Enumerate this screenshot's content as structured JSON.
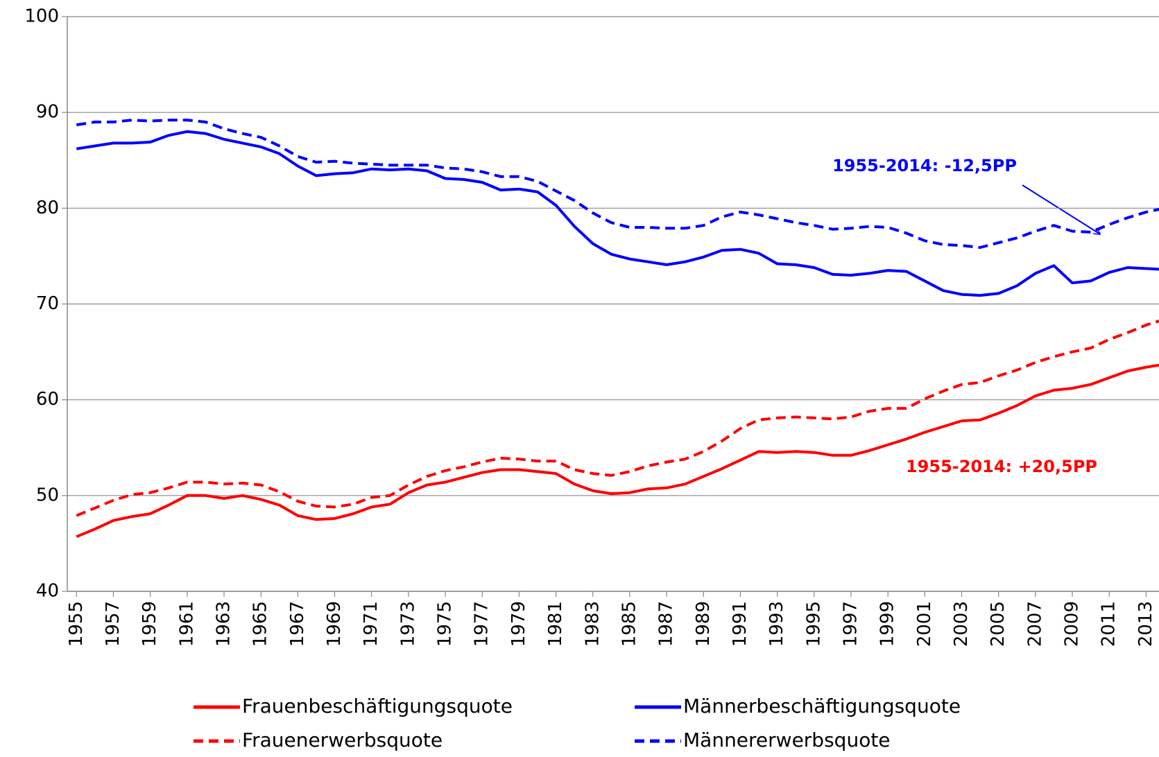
{
  "chart_data": {
    "type": "line",
    "x": [
      1955,
      1956,
      1957,
      1958,
      1959,
      1960,
      1961,
      1962,
      1963,
      1964,
      1965,
      1966,
      1967,
      1968,
      1969,
      1970,
      1971,
      1972,
      1973,
      1974,
      1975,
      1976,
      1977,
      1978,
      1979,
      1980,
      1981,
      1982,
      1983,
      1984,
      1985,
      1986,
      1987,
      1988,
      1989,
      1990,
      1991,
      1992,
      1993,
      1994,
      1995,
      1996,
      1997,
      1998,
      1999,
      2000,
      2001,
      2002,
      2003,
      2004,
      2005,
      2006,
      2007,
      2008,
      2009,
      2010,
      2011,
      2012,
      2013,
      2014
    ],
    "xlim": [
      1954.5,
      2013.7
    ],
    "xticks": [
      1955,
      1957,
      1959,
      1961,
      1963,
      1965,
      1967,
      1969,
      1971,
      1973,
      1975,
      1977,
      1979,
      1981,
      1983,
      1985,
      1987,
      1989,
      1991,
      1993,
      1995,
      1997,
      1999,
      2001,
      2003,
      2005,
      2007,
      2009,
      2011,
      2013
    ],
    "ylim": [
      40,
      100
    ],
    "yticks": [
      40,
      50,
      60,
      70,
      80,
      90,
      100
    ],
    "grid": true,
    "series": [
      {
        "name": "Frauenbeschäftigungsquote",
        "color": "#ff0000",
        "dash": false,
        "values": [
          45.7,
          46.5,
          47.4,
          47.8,
          48.1,
          49.0,
          50.0,
          50.0,
          49.7,
          50.0,
          49.6,
          49.0,
          47.9,
          47.5,
          47.6,
          48.1,
          48.8,
          49.1,
          50.3,
          51.1,
          51.4,
          51.9,
          52.4,
          52.7,
          52.7,
          52.5,
          52.3,
          51.2,
          50.5,
          50.2,
          50.3,
          50.7,
          50.8,
          51.2,
          52.0,
          52.8,
          53.7,
          54.6,
          54.5,
          54.6,
          54.5,
          54.2,
          54.2,
          54.7,
          55.3,
          55.9,
          56.6,
          57.2,
          57.8,
          57.9,
          58.6,
          59.4,
          60.4,
          61.0,
          61.2,
          61.6,
          62.3,
          63.0,
          63.4,
          63.7
        ]
      },
      {
        "name": "Männerbeschäftigungsquote",
        "color": "#0000ff",
        "dash": false,
        "values": [
          86.2,
          86.5,
          86.8,
          86.8,
          86.9,
          87.6,
          88.0,
          87.8,
          87.2,
          86.8,
          86.4,
          85.7,
          84.4,
          83.4,
          83.6,
          83.7,
          84.1,
          84.0,
          84.1,
          83.9,
          83.1,
          83.0,
          82.7,
          81.9,
          82.0,
          81.7,
          80.3,
          78.1,
          76.3,
          75.2,
          74.7,
          74.4,
          74.1,
          74.4,
          74.9,
          75.6,
          75.7,
          75.3,
          74.2,
          74.1,
          73.8,
          73.1,
          73.0,
          73.2,
          73.5,
          73.4,
          72.4,
          71.4,
          71.0,
          70.9,
          71.1,
          71.9,
          73.2,
          74.0,
          72.2,
          72.4,
          73.3,
          73.8,
          73.7,
          73.6
        ]
      },
      {
        "name": "Frauenerwerbsquote",
        "color": "#ff0000",
        "dash": true,
        "values": [
          47.9,
          48.7,
          49.5,
          50.1,
          50.3,
          50.8,
          51.4,
          51.4,
          51.2,
          51.3,
          51.1,
          50.4,
          49.4,
          48.9,
          48.8,
          49.1,
          49.8,
          50.0,
          51.1,
          52.0,
          52.6,
          53.0,
          53.5,
          53.9,
          53.8,
          53.6,
          53.6,
          52.7,
          52.3,
          52.1,
          52.5,
          53.1,
          53.5,
          53.8,
          54.6,
          55.7,
          57.0,
          57.9,
          58.1,
          58.2,
          58.1,
          58.0,
          58.2,
          58.8,
          59.1,
          59.1,
          60.1,
          60.9,
          61.6,
          61.8,
          62.5,
          63.1,
          63.9,
          64.5,
          65.0,
          65.4,
          66.3,
          67.0,
          67.8,
          68.4
        ]
      },
      {
        "name": "Männererwerbsquote",
        "color": "#0000ff",
        "dash": true,
        "values": [
          88.7,
          89.0,
          89.0,
          89.2,
          89.1,
          89.2,
          89.2,
          89.0,
          88.3,
          87.8,
          87.4,
          86.5,
          85.4,
          84.8,
          84.9,
          84.7,
          84.6,
          84.5,
          84.5,
          84.5,
          84.2,
          84.1,
          83.8,
          83.3,
          83.3,
          82.8,
          81.8,
          80.8,
          79.5,
          78.5,
          78.0,
          78.0,
          77.9,
          77.9,
          78.2,
          79.1,
          79.6,
          79.3,
          78.9,
          78.5,
          78.2,
          77.8,
          77.9,
          78.1,
          78.0,
          77.4,
          76.6,
          76.2,
          76.1,
          75.9,
          76.4,
          76.9,
          77.6,
          78.2,
          77.6,
          77.5,
          78.3,
          79.0,
          79.6,
          80.0
        ]
      }
    ],
    "annotations": [
      {
        "text": "1955-2014: -12,5PP",
        "color": "#0000ff"
      },
      {
        "text": "1955-2014: +20,5PP",
        "color": "#ff0000"
      }
    ]
  }
}
